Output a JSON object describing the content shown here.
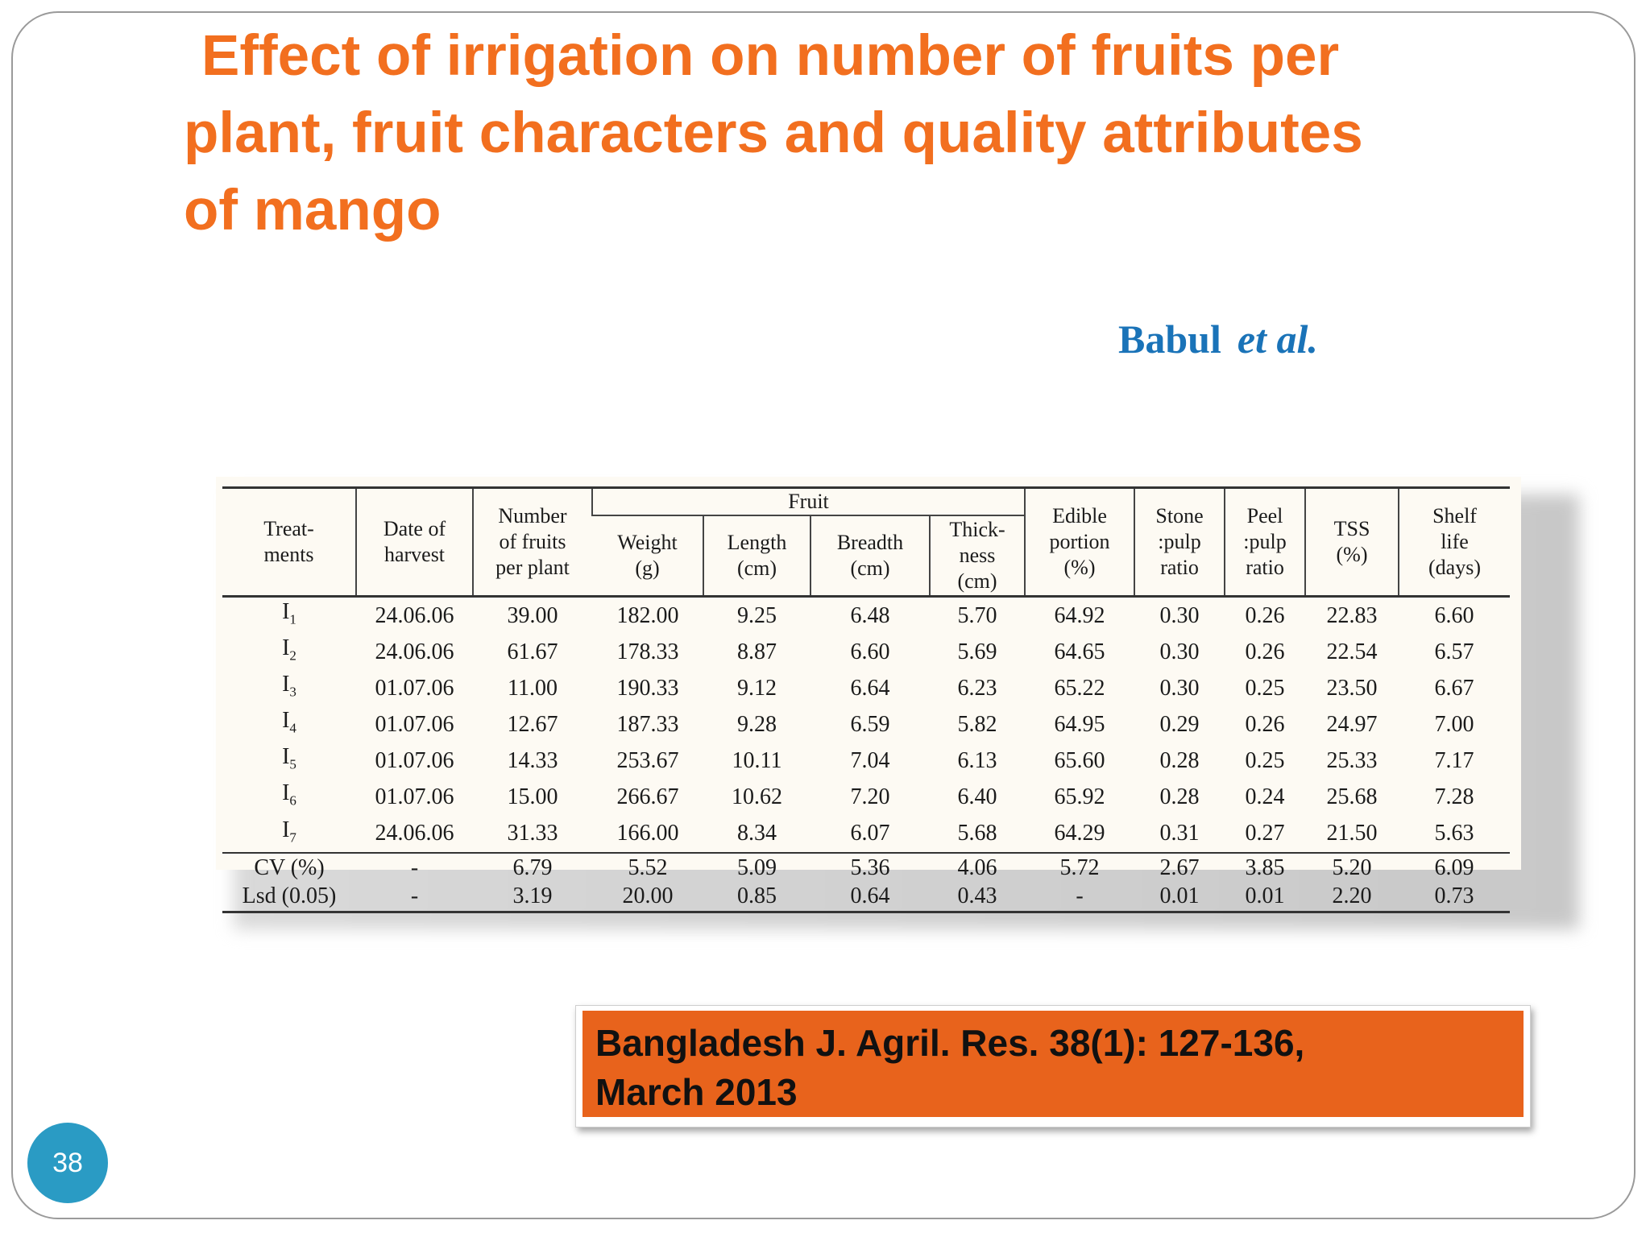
{
  "slide": {
    "title_lines": [
      "Effect of irrigation on number of fruits per",
      "plant, fruit characters and quality attributes",
      "of mango"
    ],
    "author": "Babul",
    "author_suffix": "et al.",
    "citation_lines": [
      "Bangladesh J. Agril. Res. 38(1): 127-136,",
      "March 2013"
    ],
    "page_number": "38"
  },
  "colors": {
    "title": "#f26f1f",
    "author": "#1a73b8",
    "citation_bg": "#e8631c",
    "page_badge": "#2a9bc4"
  },
  "table": {
    "group_header": "Fruit",
    "headers": {
      "treatments": [
        "Treat-",
        "ments"
      ],
      "date": [
        "Date of",
        "harvest"
      ],
      "number": [
        "Number",
        "of fruits",
        "per plant"
      ],
      "weight": [
        "Weight",
        "(g)"
      ],
      "length": [
        "Length",
        "(cm)"
      ],
      "breadth": [
        "Breadth",
        "(cm)"
      ],
      "thickness": [
        "Thick-",
        "ness",
        "(cm)"
      ],
      "edible": [
        "Edible",
        "portion",
        "(%)"
      ],
      "stone": [
        "Stone",
        ":pulp",
        "ratio"
      ],
      "peel": [
        "Peel",
        ":pulp",
        "ratio"
      ],
      "tss": [
        "TSS",
        "(%)"
      ],
      "shelf": [
        "Shelf",
        "life",
        "(days)"
      ]
    },
    "rows": [
      {
        "trt": "I",
        "sub": "1",
        "date": "24.06.06",
        "num": "39.00",
        "weight": "182.00",
        "length": "9.25",
        "breadth": "6.48",
        "thick": "5.70",
        "edible": "64.92",
        "stone": "0.30",
        "peel": "0.26",
        "tss": "22.83",
        "shelf": "6.60"
      },
      {
        "trt": "I",
        "sub": "2",
        "date": "24.06.06",
        "num": "61.67",
        "weight": "178.33",
        "length": "8.87",
        "breadth": "6.60",
        "thick": "5.69",
        "edible": "64.65",
        "stone": "0.30",
        "peel": "0.26",
        "tss": "22.54",
        "shelf": "6.57"
      },
      {
        "trt": "I",
        "sub": "3",
        "date": "01.07.06",
        "num": "11.00",
        "weight": "190.33",
        "length": "9.12",
        "breadth": "6.64",
        "thick": "6.23",
        "edible": "65.22",
        "stone": "0.30",
        "peel": "0.25",
        "tss": "23.50",
        "shelf": "6.67"
      },
      {
        "trt": "I",
        "sub": "4",
        "date": "01.07.06",
        "num": "12.67",
        "weight": "187.33",
        "length": "9.28",
        "breadth": "6.59",
        "thick": "5.82",
        "edible": "64.95",
        "stone": "0.29",
        "peel": "0.26",
        "tss": "24.97",
        "shelf": "7.00"
      },
      {
        "trt": "I",
        "sub": "5",
        "date": "01.07.06",
        "num": "14.33",
        "weight": "253.67",
        "length": "10.11",
        "breadth": "7.04",
        "thick": "6.13",
        "edible": "65.60",
        "stone": "0.28",
        "peel": "0.25",
        "tss": "25.33",
        "shelf": "7.17"
      },
      {
        "trt": "I",
        "sub": "6",
        "date": "01.07.06",
        "num": "15.00",
        "weight": "266.67",
        "length": "10.62",
        "breadth": "7.20",
        "thick": "6.40",
        "edible": "65.92",
        "stone": "0.28",
        "peel": "0.24",
        "tss": "25.68",
        "shelf": "7.28"
      },
      {
        "trt": "I",
        "sub": "7",
        "date": "24.06.06",
        "num": "31.33",
        "weight": "166.00",
        "length": "8.34",
        "breadth": "6.07",
        "thick": "5.68",
        "edible": "64.29",
        "stone": "0.31",
        "peel": "0.27",
        "tss": "21.50",
        "shelf": "5.63"
      }
    ],
    "stats": [
      {
        "label": "CV (%)",
        "date": "-",
        "num": "6.79",
        "weight": "5.52",
        "length": "5.09",
        "breadth": "5.36",
        "thick": "4.06",
        "edible": "5.72",
        "stone": "2.67",
        "peel": "3.85",
        "tss": "5.20",
        "shelf": "6.09"
      },
      {
        "label": "Lsd (0.05)",
        "date": "-",
        "num": "3.19",
        "weight": "20.00",
        "length": "0.85",
        "breadth": "0.64",
        "thick": "0.43",
        "edible": "-",
        "stone": "0.01",
        "peel": "0.01",
        "tss": "2.20",
        "shelf": "0.73"
      }
    ]
  }
}
